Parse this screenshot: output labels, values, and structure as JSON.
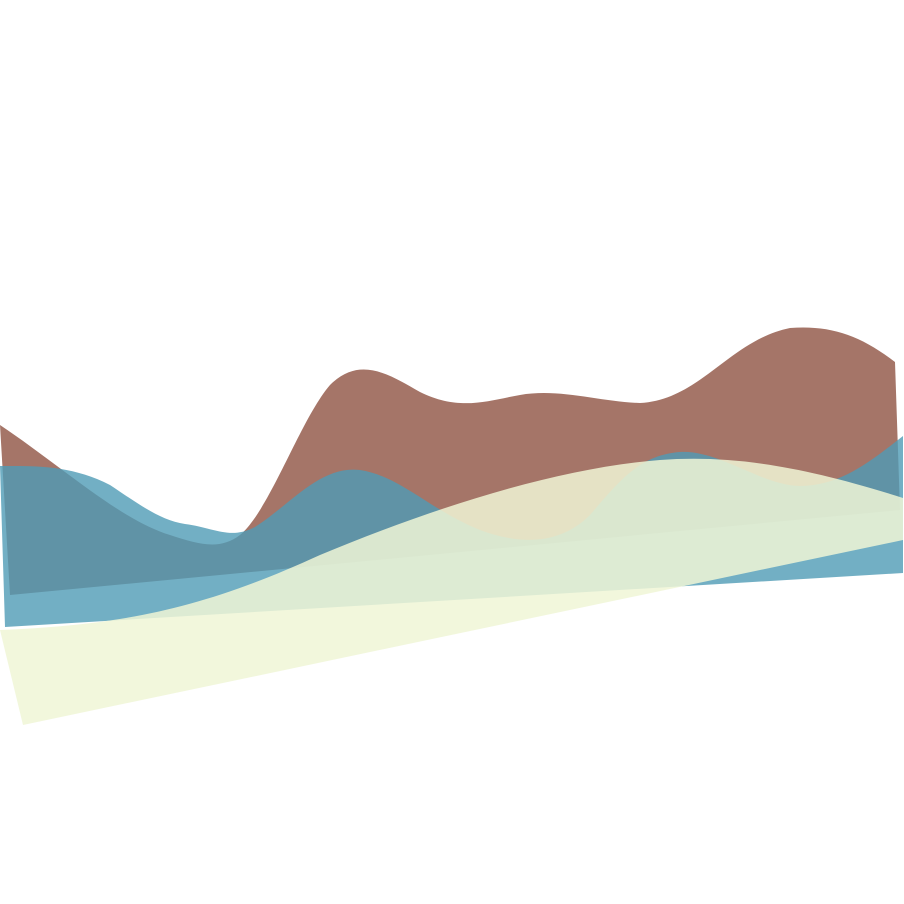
{
  "artwork": {
    "description_free": true,
    "background_color": "#ffffff",
    "layers": [
      {
        "id": "brown",
        "color": "#a57568",
        "opacity": 1.0
      },
      {
        "id": "blue",
        "color": "#4f9bb5",
        "opacity": 0.8
      },
      {
        "id": "cream",
        "color": "#f0f6d6",
        "opacity": 0.85
      }
    ]
  }
}
